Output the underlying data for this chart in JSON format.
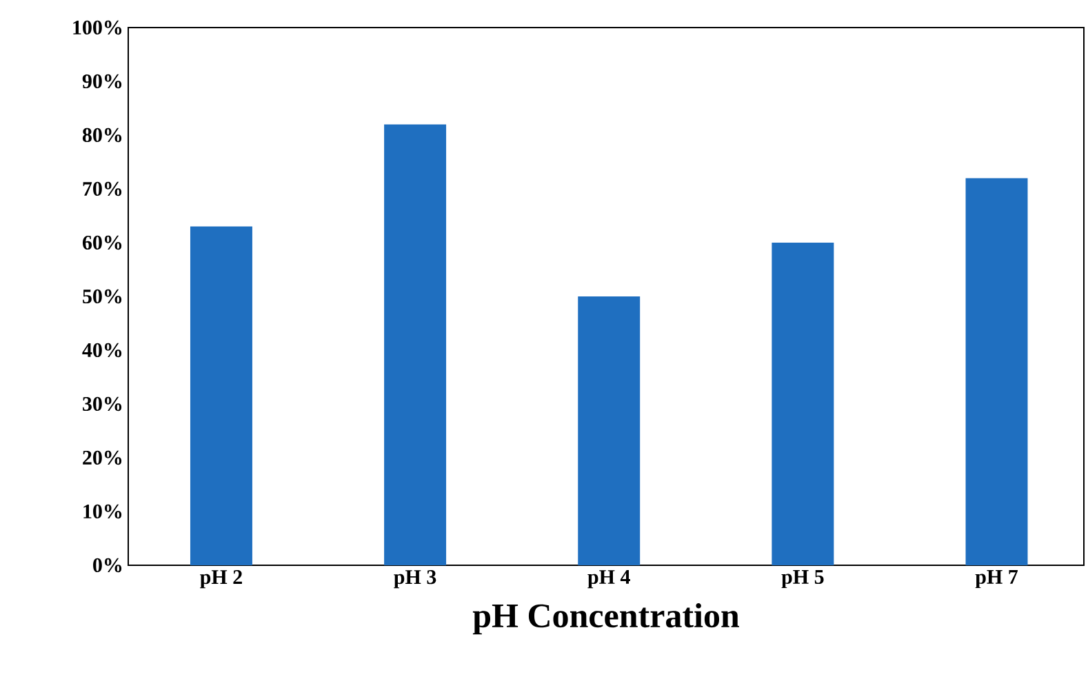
{
  "chart_data": {
    "type": "bar",
    "xlabel": "pH Concentration",
    "categories": [
      "pH 2",
      "pH 3",
      "pH 4",
      "pH 5",
      "pH 7"
    ],
    "values": [
      63,
      82,
      50,
      60,
      72
    ],
    "color": "#1f6fc0",
    "ylim": [
      0,
      100
    ],
    "yticks": [
      {
        "value": 0,
        "label": "0%"
      },
      {
        "value": 10,
        "label": "10%"
      },
      {
        "value": 20,
        "label": "20%"
      },
      {
        "value": 30,
        "label": "30%"
      },
      {
        "value": 40,
        "label": "40%"
      },
      {
        "value": 50,
        "label": "50%"
      },
      {
        "value": 60,
        "label": "60%"
      },
      {
        "value": 70,
        "label": "70%"
      },
      {
        "value": 80,
        "label": "80%"
      },
      {
        "value": 90,
        "label": "90%"
      },
      {
        "value": 100,
        "label": "100%"
      }
    ],
    "grid": false
  }
}
